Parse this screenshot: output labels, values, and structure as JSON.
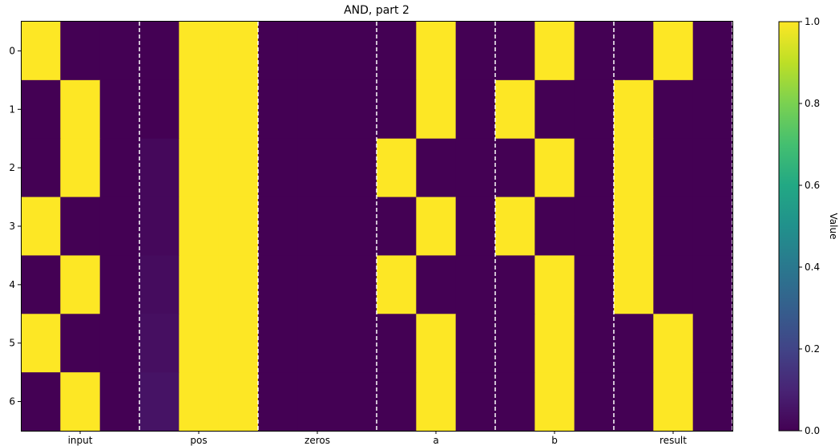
{
  "chart_data": {
    "type": "heatmap",
    "title": "AND, part 2",
    "xlabel": "",
    "ylabel": "",
    "row_labels": [
      "0",
      "1",
      "2",
      "3",
      "4",
      "5",
      "6"
    ],
    "column_groups": [
      "input",
      "pos",
      "zeros",
      "a",
      "b",
      "result"
    ],
    "columns_per_group": 3,
    "values": [
      [
        1,
        0,
        0,
        0,
        1,
        1,
        0,
        0,
        0,
        0,
        1,
        0,
        0,
        1,
        0,
        0,
        1,
        0
      ],
      [
        0,
        1,
        0,
        0,
        1,
        1,
        0,
        0,
        0,
        0,
        1,
        0,
        1,
        0,
        0,
        1,
        0,
        0
      ],
      [
        0,
        1,
        0,
        0.02,
        1,
        1,
        0,
        0,
        0,
        1,
        0,
        0,
        0,
        1,
        0,
        1,
        0,
        0
      ],
      [
        1,
        0,
        0,
        0.02,
        1,
        1,
        0,
        0,
        0,
        0,
        1,
        0,
        1,
        0,
        0,
        1,
        0,
        0
      ],
      [
        0,
        1,
        0,
        0.03,
        1,
        1,
        0,
        0,
        0,
        1,
        0,
        0,
        0,
        1,
        0,
        1,
        0,
        0
      ],
      [
        1,
        0,
        0,
        0.04,
        1,
        1,
        0,
        0,
        0,
        0,
        1,
        0,
        0,
        1,
        0,
        0,
        1,
        0
      ],
      [
        0,
        1,
        0,
        0.05,
        1,
        1,
        0,
        0,
        0,
        0,
        1,
        0,
        0,
        1,
        0,
        0,
        1,
        0
      ]
    ],
    "colormap": "viridis",
    "vmin": 0.0,
    "vmax": 1.0,
    "group_separators": "white-dashed",
    "colorbar": {
      "label": "Value",
      "ticks": [
        "0.0",
        "0.2",
        "0.4",
        "0.6",
        "0.8",
        "1.0"
      ]
    }
  }
}
